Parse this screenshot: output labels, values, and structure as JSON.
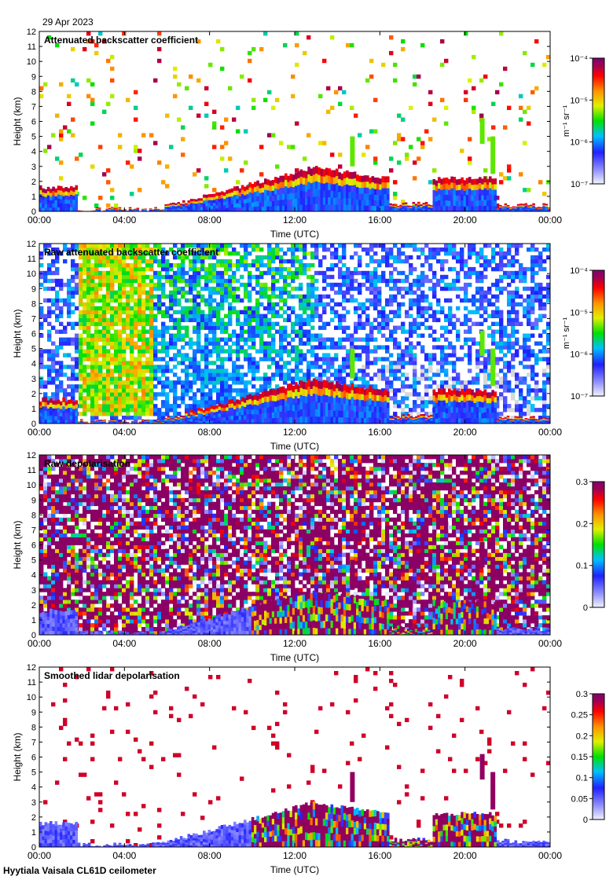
{
  "date": "29 Apr 2023",
  "footer": "Hyytiala Vaisala CL61D ceilometer",
  "colors": {
    "axis": "#000000",
    "missing": "#d8d8d8",
    "background": "#ffffff"
  },
  "chart_data": [
    {
      "type": "heatmap",
      "title": "Attenuated backscatter coefficient",
      "xlabel": "Time (UTC)",
      "ylabel": "Height (km)",
      "xticks": [
        "00:00",
        "04:00",
        "08:00",
        "12:00",
        "16:00",
        "20:00",
        "00:00"
      ],
      "ylim": [
        0,
        12
      ],
      "yticks": [
        0,
        1,
        2,
        3,
        4,
        5,
        6,
        7,
        8,
        9,
        10,
        11,
        12
      ],
      "colorbar": {
        "scale": "log",
        "range": [
          1e-07,
          0.0001
        ],
        "label": "m⁻¹ sr⁻¹",
        "tick_labels": [
          "10⁻⁴",
          "10⁻⁵",
          "10⁻⁶",
          "10⁻⁷"
        ]
      }
    },
    {
      "type": "heatmap",
      "title": "Raw attenuated backscatter coefficient",
      "xlabel": "Time (UTC)",
      "ylabel": "Height (km)",
      "xticks": [
        "00:00",
        "04:00",
        "08:00",
        "12:00",
        "16:00",
        "20:00",
        "00:00"
      ],
      "ylim": [
        0,
        12
      ],
      "yticks": [
        0,
        1,
        2,
        3,
        4,
        5,
        6,
        7,
        8,
        9,
        10,
        11,
        12
      ],
      "colorbar": {
        "scale": "log",
        "range": [
          1e-07,
          0.0001
        ],
        "label": "m⁻¹ sr⁻¹",
        "tick_labels": [
          "10⁻⁴",
          "10⁻⁵",
          "10⁻⁶",
          "10⁻⁷"
        ]
      }
    },
    {
      "type": "heatmap",
      "title": "Raw depolarisation",
      "xlabel": "Time (UTC)",
      "ylabel": "Height (km)",
      "xticks": [
        "00:00",
        "04:00",
        "08:00",
        "12:00",
        "16:00",
        "20:00",
        "00:00"
      ],
      "ylim": [
        0,
        12
      ],
      "yticks": [
        0,
        1,
        2,
        3,
        4,
        5,
        6,
        7,
        8,
        9,
        10,
        11,
        12
      ],
      "colorbar": {
        "scale": "linear",
        "range": [
          0,
          0.3
        ],
        "label": "",
        "tick_labels": [
          "0.3",
          "0.2",
          "0.1",
          "0"
        ]
      }
    },
    {
      "type": "heatmap",
      "title": "Smoothed lidar depolarisation",
      "xlabel": "Time (UTC)",
      "ylabel": "Height (km)",
      "xticks": [
        "00:00",
        "04:00",
        "08:00",
        "12:00",
        "16:00",
        "20:00",
        "00:00"
      ],
      "ylim": [
        0,
        12
      ],
      "yticks": [
        0,
        1,
        2,
        3,
        4,
        5,
        6,
        7,
        8,
        9,
        10,
        11,
        12
      ],
      "colorbar": {
        "scale": "linear",
        "range": [
          0,
          0.3
        ],
        "label": "",
        "tick_labels": [
          "0.3",
          "0.25",
          "0.2",
          "0.15",
          "0.1",
          "0.05",
          "0"
        ]
      }
    }
  ]
}
